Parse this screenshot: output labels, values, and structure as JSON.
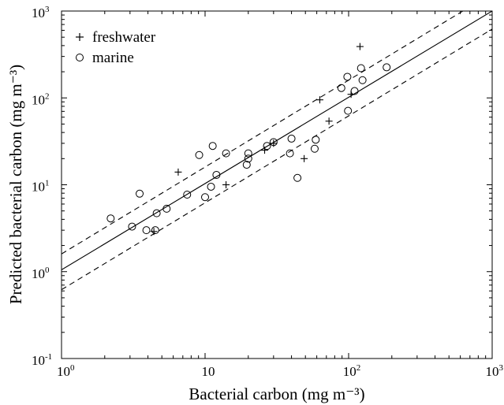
{
  "chart_data": {
    "type": "scatter",
    "x_scale": "log",
    "y_scale": "log",
    "xlim": [
      1,
      1000
    ],
    "ylim": [
      0.1,
      1000
    ],
    "grid": false,
    "legend_position": "top-left",
    "xlabel": "Bacterial carbon (mg m⁻³)",
    "ylabel": "Predicted bacterial carbon (mg m⁻³)",
    "x_ticks": [
      {
        "value": 1,
        "base": "10",
        "exp": "0"
      },
      {
        "value": 10,
        "base": "10",
        "exp": ""
      },
      {
        "value": 100,
        "base": "10",
        "exp": "2"
      },
      {
        "value": 1000,
        "base": "10",
        "exp": "3"
      }
    ],
    "y_ticks": [
      {
        "value": 0.1,
        "base": "10",
        "exp": "-1"
      },
      {
        "value": 1,
        "base": "10",
        "exp": "0"
      },
      {
        "value": 10,
        "base": "10",
        "exp": "1"
      },
      {
        "value": 100,
        "base": "10",
        "exp": "2"
      },
      {
        "value": 1000,
        "base": "10",
        "exp": "3"
      }
    ],
    "series": [
      {
        "name": "freshwater",
        "marker": "plus",
        "points": [
          [
            4.4,
            2.9
          ],
          [
            6.5,
            14
          ],
          [
            14,
            10
          ],
          [
            26,
            25
          ],
          [
            30,
            30
          ],
          [
            49,
            20
          ],
          [
            63,
            95
          ],
          [
            73,
            54
          ],
          [
            104,
            110
          ],
          [
            120,
            390
          ]
        ]
      },
      {
        "name": "marine",
        "marker": "circle",
        "points": [
          [
            2.2,
            4.1
          ],
          [
            3.1,
            3.3
          ],
          [
            3.5,
            7.9
          ],
          [
            3.9,
            3.0
          ],
          [
            4.5,
            3.0
          ],
          [
            4.6,
            4.7
          ],
          [
            5.4,
            5.3
          ],
          [
            7.5,
            7.7
          ],
          [
            9.1,
            22
          ],
          [
            10,
            7.2
          ],
          [
            11,
            9.5
          ],
          [
            11.3,
            28
          ],
          [
            12,
            13
          ],
          [
            14,
            23
          ],
          [
            19.5,
            17
          ],
          [
            20,
            23
          ],
          [
            20,
            20
          ],
          [
            27,
            28
          ],
          [
            30,
            31
          ],
          [
            39,
            23
          ],
          [
            40,
            34
          ],
          [
            44,
            12
          ],
          [
            58,
            26
          ],
          [
            59,
            33
          ],
          [
            89,
            130
          ],
          [
            98,
            175
          ],
          [
            99,
            71
          ],
          [
            110,
            120
          ],
          [
            122,
            220
          ],
          [
            125,
            160
          ],
          [
            184,
            225
          ]
        ]
      }
    ],
    "fit_lines": [
      {
        "style": "solid",
        "from": [
          1,
          1.05
        ],
        "to": [
          1000,
          1000
        ]
      },
      {
        "style": "dashed",
        "from": [
          1,
          1.6
        ],
        "to": [
          1000,
          1600
        ]
      },
      {
        "style": "dashed",
        "from": [
          1,
          0.62
        ],
        "to": [
          1000,
          620
        ]
      }
    ]
  }
}
